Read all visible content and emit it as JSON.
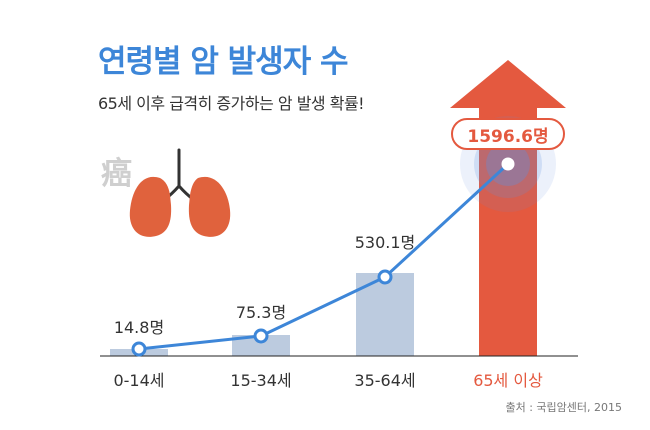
{
  "title": "연령별 암 발생자 수",
  "subtitle": "65세 이후 급격히 증가하는 암 발생 확률!",
  "hanja": "癌",
  "source": "출처 : 국립암센터, 2015",
  "icons": [
    "lungs-icon",
    "up-arrow-icon"
  ],
  "colors": {
    "title": "#3d86d8",
    "bar": "#bccbdf",
    "line": "#3d86d8",
    "arrow": "#e4593f",
    "highlight_label": "#e4593f",
    "lungs": "#e0623d"
  },
  "chart_data": {
    "type": "bar",
    "categories": [
      "0-14세",
      "15-34세",
      "35-64세",
      "65세 이상"
    ],
    "values": [
      14.8,
      75.3,
      530.1,
      1596.6
    ],
    "data_labels": [
      "14.8명",
      "75.3명",
      "530.1명",
      "1596.6명"
    ],
    "unit": "명",
    "line_overlay": true,
    "highlight_index": 3,
    "ylim": [
      0,
      1600
    ]
  }
}
